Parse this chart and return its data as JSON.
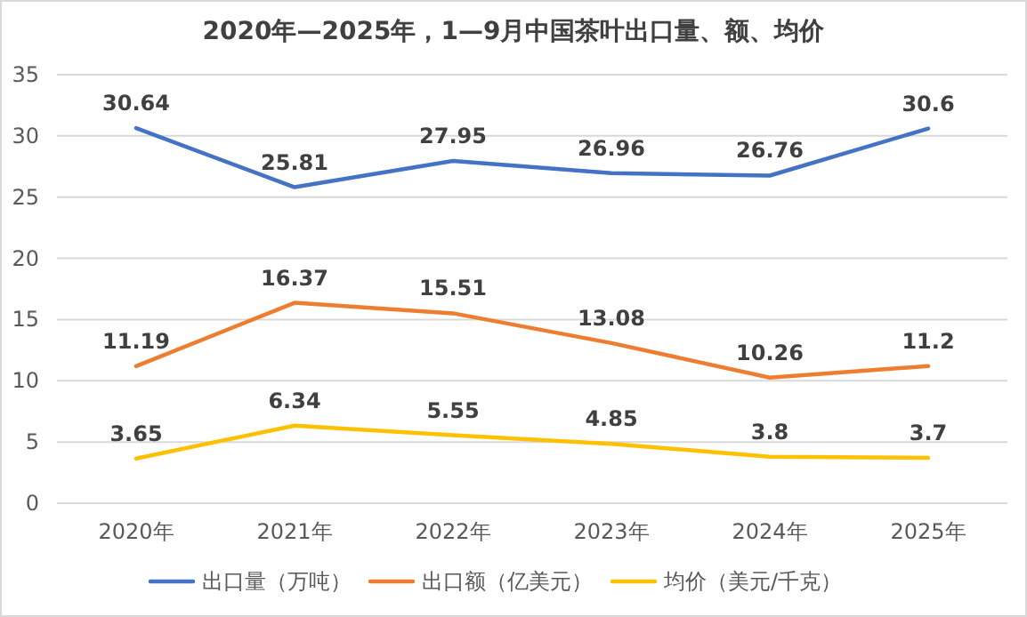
{
  "chart_data": {
    "type": "line",
    "title": "2020年—2025年，1—9月中国茶叶出口量、额、均价",
    "categories": [
      "2020年",
      "2021年",
      "2022年",
      "2023年",
      "2024年",
      "2025年"
    ],
    "series": [
      {
        "name": "出口量（万吨）",
        "color": "#4472c4",
        "values": [
          30.64,
          25.81,
          27.95,
          26.96,
          26.76,
          30.6
        ]
      },
      {
        "name": "出口额（亿美元）",
        "color": "#ed7d31",
        "values": [
          11.19,
          16.37,
          15.51,
          13.08,
          10.26,
          11.2
        ]
      },
      {
        "name": "均价（美元/千克）",
        "color": "#ffc000",
        "values": [
          3.65,
          6.34,
          5.55,
          4.85,
          3.8,
          3.7
        ]
      }
    ],
    "ylim": [
      0,
      35
    ],
    "yticks": [
      0,
      5,
      10,
      15,
      20,
      25,
      30,
      35
    ],
    "grid": "y",
    "legend": "bottom",
    "data_labels": true,
    "marker": "none",
    "line_style": "solid"
  }
}
